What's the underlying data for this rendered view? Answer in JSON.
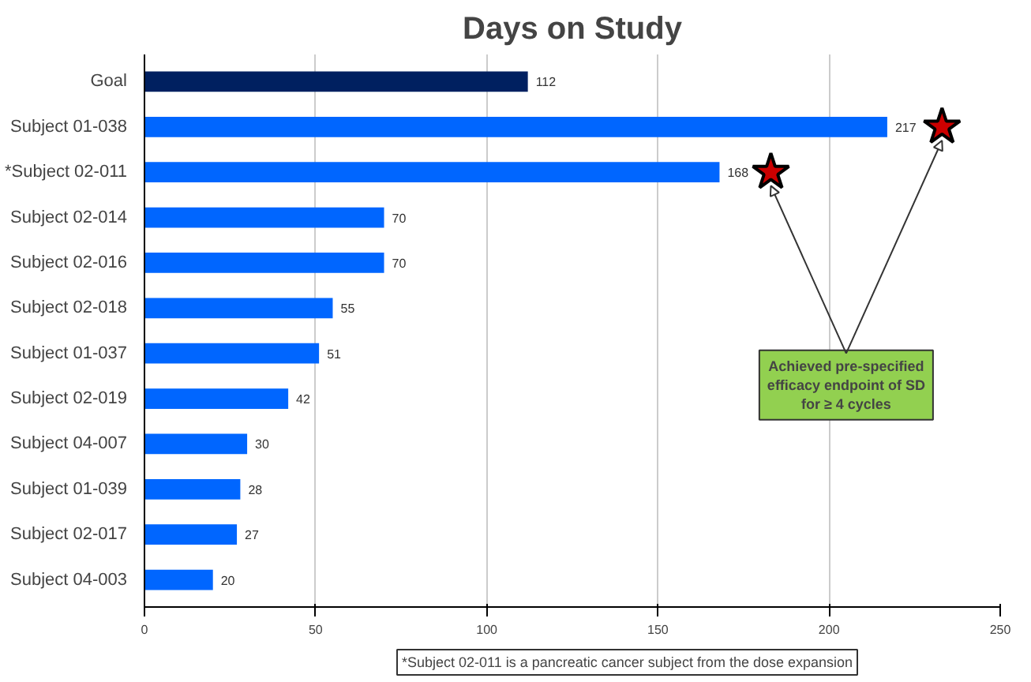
{
  "chart_data": {
    "type": "bar",
    "orientation": "horizontal",
    "title": "Days on Study",
    "categories": [
      "Goal",
      "Subject 01-038",
      "*Subject 02-011",
      "Subject 02-014",
      "Subject 02-016",
      "Subject 02-018",
      "Subject 01-037",
      "Subject 02-019",
      "Subject 04-007",
      "Subject 01-039",
      "Subject 02-017",
      "Subject 04-003"
    ],
    "values": [
      112,
      217,
      168,
      70,
      70,
      55,
      51,
      42,
      30,
      28,
      27,
      20
    ],
    "colors": [
      "#002060",
      "#0066ff",
      "#0066ff",
      "#0066ff",
      "#0066ff",
      "#0066ff",
      "#0066ff",
      "#0066ff",
      "#0066ff",
      "#0066ff",
      "#0066ff",
      "#0066ff"
    ],
    "series": [
      {
        "type": "scatter",
        "marker": "star",
        "color": "#cc0000",
        "values": [
          null,
          233,
          183,
          null,
          null,
          null,
          null,
          null,
          null,
          null,
          null,
          null
        ],
        "value_labels": [
          null,
          null,
          null,
          null,
          null,
          null,
          null,
          null,
          null,
          null,
          null,
          null
        ]
      }
    ],
    "data_labels": true,
    "xlim": [
      0,
      250
    ],
    "xticks": [
      0,
      50,
      100,
      150,
      200,
      250
    ],
    "grid": "x",
    "annotations": [
      {
        "text": "Achieved pre-specified efficacy endpoint of SD for ≥ 4 cycles",
        "x": 233,
        "y": "Subject 01-038"
      },
      "*Subject 02-011 is a pancreatic cancer subject from the dose expansion"
    ]
  }
}
